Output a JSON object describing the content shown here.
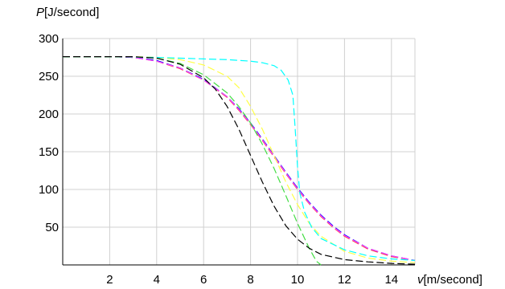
{
  "chart_data": {
    "type": "line",
    "title": "",
    "ylabel_symbol": "P",
    "ylabel_unit": "[J/second]",
    "xlabel_symbol": "v",
    "xlabel_unit": "[m/second]",
    "xlim": [
      0,
      15
    ],
    "ylim": [
      0,
      300
    ],
    "x_ticks": [
      2,
      4,
      6,
      8,
      10,
      12,
      14
    ],
    "y_ticks": [
      50,
      100,
      150,
      200,
      250,
      300
    ],
    "grid": true,
    "legend": "none",
    "series": [
      {
        "color": "#ff4444",
        "x": [
          0,
          1,
          2,
          3,
          4,
          5,
          6,
          7,
          7.5,
          8,
          8.5,
          9,
          9.5,
          10,
          10.5,
          11,
          11.5,
          12,
          13,
          14,
          15
        ],
        "values": [
          276,
          276,
          276,
          275,
          270,
          260,
          245,
          222,
          205,
          186,
          165,
          143,
          121,
          100,
          81,
          64,
          50,
          38,
          21,
          11,
          6
        ]
      },
      {
        "color": "#0000ff",
        "x": [
          0,
          1,
          2,
          3,
          4,
          5,
          6,
          7,
          7.5,
          8,
          8.5,
          9,
          9.5,
          10,
          10.5,
          11,
          11.5,
          12,
          13,
          14,
          15
        ],
        "values": [
          276,
          276,
          276,
          275,
          271,
          261,
          246,
          223,
          207,
          188,
          167,
          145,
          123,
          102,
          83,
          66,
          52,
          40,
          22,
          12,
          6
        ]
      },
      {
        "color": "#ff44ff",
        "x": [
          0,
          1,
          2,
          3,
          4,
          5,
          6,
          7,
          7.5,
          8,
          8.5,
          9,
          9.5,
          10,
          10.5,
          11,
          11.5,
          12,
          13,
          14,
          15
        ],
        "values": [
          276,
          276,
          276,
          275,
          270,
          261,
          245,
          223,
          206,
          187,
          166,
          144,
          122,
          101,
          82,
          65,
          51,
          39,
          22,
          12,
          6
        ]
      },
      {
        "color": "#ffff44",
        "x": [
          0,
          2,
          3,
          4,
          5,
          6,
          7,
          7.5,
          8,
          8.5,
          9,
          9.5,
          10,
          10.5,
          11,
          12,
          13,
          14,
          15
        ],
        "values": [
          276,
          276,
          276,
          275,
          272,
          265,
          250,
          235,
          210,
          180,
          145,
          110,
          80,
          55,
          38,
          18,
          9,
          5,
          3
        ]
      },
      {
        "color": "#00ffff",
        "x": [
          0,
          2,
          4,
          6,
          7,
          8,
          8.5,
          9,
          9.3,
          9.6,
          9.8,
          9.9,
          10,
          10.1,
          10.3,
          10.6,
          11,
          12,
          13,
          14,
          15
        ],
        "values": [
          276,
          276,
          275,
          273,
          272,
          270,
          268,
          264,
          258,
          245,
          225,
          180,
          130,
          95,
          70,
          50,
          35,
          20,
          12,
          8,
          6
        ]
      },
      {
        "color": "#44dd44",
        "x": [
          0,
          2,
          3,
          4,
          5,
          6,
          7,
          7.5,
          8,
          8.5,
          9,
          9.5,
          10,
          10.5,
          10.8,
          11
        ],
        "values": [
          276,
          276,
          276,
          274,
          267,
          252,
          228,
          210,
          188,
          160,
          128,
          92,
          55,
          22,
          5,
          0
        ]
      },
      {
        "color": "#000000",
        "x": [
          0,
          2,
          3,
          4,
          5,
          6,
          6.5,
          7,
          7.5,
          8,
          8.5,
          9,
          9.5,
          10,
          10.5,
          11,
          12,
          13,
          14,
          15
        ],
        "values": [
          276,
          276,
          276,
          274,
          266,
          248,
          233,
          210,
          180,
          145,
          110,
          78,
          52,
          34,
          22,
          14,
          7,
          4,
          2,
          1
        ]
      }
    ]
  }
}
